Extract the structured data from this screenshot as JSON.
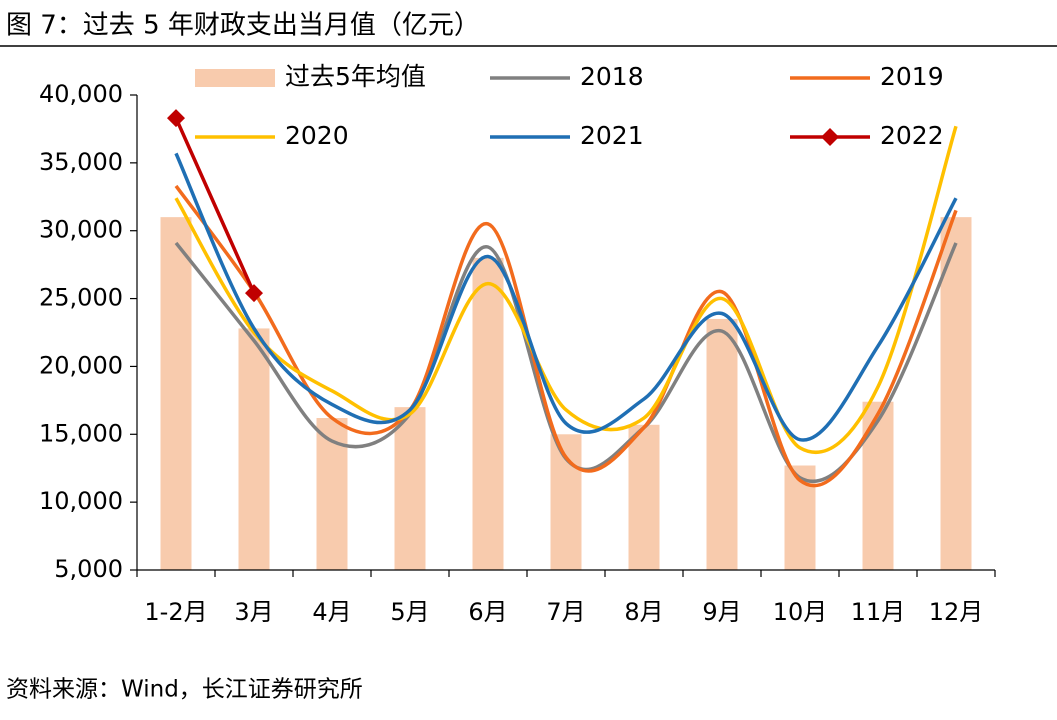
{
  "chart_data": {
    "type": "combo",
    "title": "图 7：过去 5 年财政支出当月值（亿元）",
    "source": "资料来源：Wind，长江证券研究所",
    "categories": [
      "1-2月",
      "3月",
      "4月",
      "5月",
      "6月",
      "7月",
      "8月",
      "9月",
      "10月",
      "11月",
      "12月"
    ],
    "ylim": [
      5000,
      40000
    ],
    "yticks": [
      {
        "value": 5000,
        "label": "5,000"
      },
      {
        "value": 10000,
        "label": "10,000"
      },
      {
        "value": 15000,
        "label": "15,000"
      },
      {
        "value": 20000,
        "label": "20,000"
      },
      {
        "value": 25000,
        "label": "25,000"
      },
      {
        "value": 30000,
        "label": "30,000"
      },
      {
        "value": 35000,
        "label": "35,000"
      },
      {
        "value": 40000,
        "label": "40,000"
      }
    ],
    "series": [
      {
        "name": "过去5年均值",
        "type": "bar",
        "color": "#f8cbad",
        "values": [
          31000,
          22800,
          16200,
          17000,
          28000,
          15000,
          15700,
          23500,
          12700,
          17400,
          31000
        ]
      },
      {
        "name": "2018",
        "type": "line",
        "color": "#808080",
        "values": [
          29100,
          21900,
          14500,
          16500,
          28800,
          13200,
          15500,
          22600,
          11800,
          16000,
          29100
        ]
      },
      {
        "name": "2019",
        "type": "line",
        "color": "#f26b1d",
        "values": [
          33300,
          25500,
          16200,
          16800,
          30500,
          13300,
          15500,
          25500,
          11600,
          16500,
          31500
        ]
      },
      {
        "name": "2020",
        "type": "line",
        "color": "#ffc000",
        "values": [
          32400,
          22500,
          18200,
          16500,
          26100,
          16800,
          16200,
          25000,
          14000,
          18500,
          37700
        ]
      },
      {
        "name": "2021",
        "type": "line",
        "color": "#1f6fb4",
        "values": [
          35700,
          22800,
          17200,
          16800,
          28100,
          15800,
          17600,
          23900,
          14600,
          21500,
          32400
        ]
      },
      {
        "name": "2022",
        "type": "line",
        "color": "#c00000",
        "marker": "diamond",
        "values": [
          38300,
          25400,
          null,
          null,
          null,
          null,
          null,
          null,
          null,
          null,
          null
        ]
      }
    ]
  }
}
